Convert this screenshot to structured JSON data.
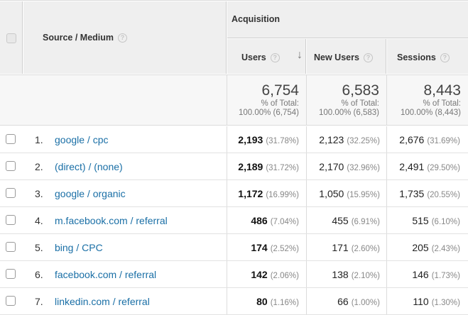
{
  "header": {
    "source_medium_label": "Source / Medium",
    "acquisition_label": "Acquisition",
    "users_label": "Users",
    "new_users_label": "New Users",
    "sessions_label": "Sessions",
    "help_glyph": "?",
    "sort_glyph": "↓"
  },
  "totals": {
    "users": {
      "value": "6,754",
      "line1": "% of Total:",
      "line2": "100.00% (6,754)"
    },
    "new_users": {
      "value": "6,583",
      "line1": "% of Total:",
      "line2": "100.00% (6,583)"
    },
    "sessions": {
      "value": "8,443",
      "line1": "% of Total:",
      "line2": "100.00% (8,443)"
    }
  },
  "rows": [
    {
      "rank": "1.",
      "source": "google / cpc",
      "users": "2,193",
      "users_pct": "(31.78%)",
      "new_users": "2,123",
      "new_users_pct": "(32.25%)",
      "sessions": "2,676",
      "sessions_pct": "(31.69%)"
    },
    {
      "rank": "2.",
      "source": "(direct) / (none)",
      "users": "2,189",
      "users_pct": "(31.72%)",
      "new_users": "2,170",
      "new_users_pct": "(32.96%)",
      "sessions": "2,491",
      "sessions_pct": "(29.50%)"
    },
    {
      "rank": "3.",
      "source": "google / organic",
      "users": "1,172",
      "users_pct": "(16.99%)",
      "new_users": "1,050",
      "new_users_pct": "(15.95%)",
      "sessions": "1,735",
      "sessions_pct": "(20.55%)"
    },
    {
      "rank": "4.",
      "source": "m.facebook.com / referral",
      "users": "486",
      "users_pct": "(7.04%)",
      "new_users": "455",
      "new_users_pct": "(6.91%)",
      "sessions": "515",
      "sessions_pct": "(6.10%)"
    },
    {
      "rank": "5.",
      "source": "bing / CPC",
      "users": "174",
      "users_pct": "(2.52%)",
      "new_users": "171",
      "new_users_pct": "(2.60%)",
      "sessions": "205",
      "sessions_pct": "(2.43%)"
    },
    {
      "rank": "6.",
      "source": "facebook.com / referral",
      "users": "142",
      "users_pct": "(2.06%)",
      "new_users": "138",
      "new_users_pct": "(2.10%)",
      "sessions": "146",
      "sessions_pct": "(1.73%)"
    },
    {
      "rank": "7.",
      "source": "linkedin.com / referral",
      "users": "80",
      "users_pct": "(1.16%)",
      "new_users": "66",
      "new_users_pct": "(1.00%)",
      "sessions": "110",
      "sessions_pct": "(1.30%)"
    }
  ]
}
